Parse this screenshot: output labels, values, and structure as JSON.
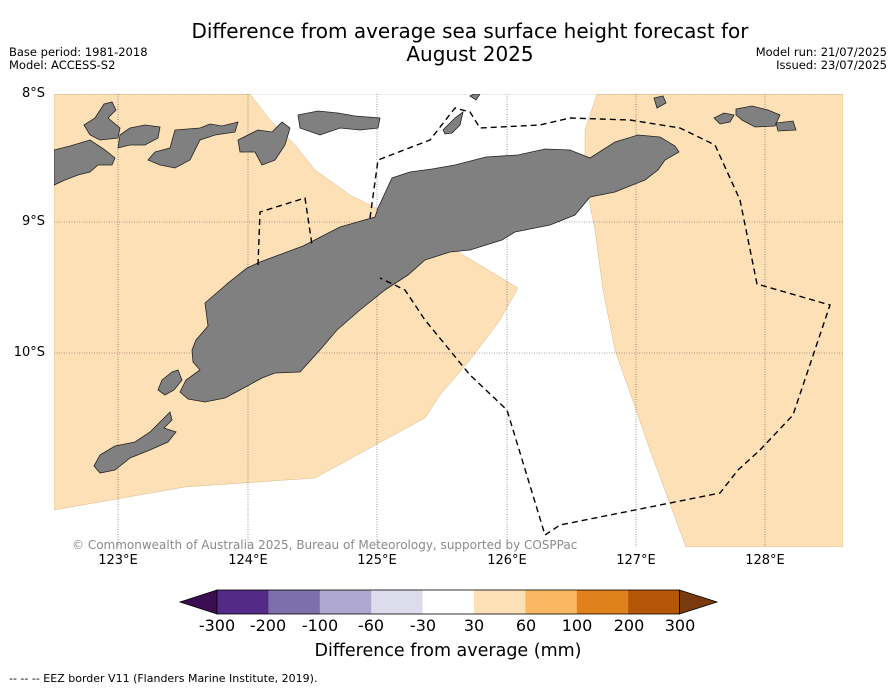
{
  "header": {
    "title_line1": "Difference from average sea surface height forecast for",
    "title_line2": "August 2025",
    "base_period": "Base period: 1981-2018",
    "model": "Model: ACCESS-S2",
    "model_run": "Model run: 21/07/2025",
    "issued": "Issued: 23/07/2025"
  },
  "map": {
    "lat_labels": [
      "8°S",
      "9°S",
      "10°S"
    ],
    "lon_labels": [
      "123°E",
      "124°E",
      "125°E",
      "126°E",
      "127°E",
      "128°E"
    ],
    "credit": "© Commonwealth of Australia 2025, Bureau of Meteorology, supported by COSPPac",
    "colors": {
      "land": "#808080",
      "anomaly_30_60": "#fde0b6",
      "eez_border": "#000000"
    }
  },
  "colorbar": {
    "label": "Difference from average (mm)",
    "ticks": [
      "-300",
      "-200",
      "-100",
      "-60",
      "-30",
      "30",
      "60",
      "100",
      "200",
      "300"
    ],
    "colors": [
      "#3d0d52",
      "#532a86",
      "#7c6faa",
      "#aea7d0",
      "#dcdcec",
      "#ffffff",
      "#fde0b6",
      "#fbb862",
      "#e0811b",
      "#b35706",
      "#7a3a0e"
    ]
  },
  "footer": {
    "legend_text": "--  --  -- EEZ border V11 (Flanders Marine Institute, 2019)."
  }
}
